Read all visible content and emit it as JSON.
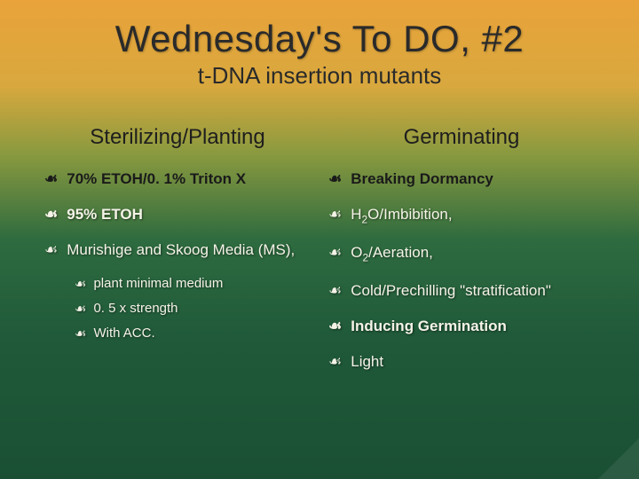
{
  "title": "Wednesday's To DO, #2",
  "subtitle": "t-DNA insertion mutants",
  "colors": {
    "gradient_top": "#e9a33a",
    "gradient_mid1": "#d8a83e",
    "gradient_mid2": "#8a9a3f",
    "gradient_mid3": "#2e6b3f",
    "gradient_bottom": "#1a4f34",
    "heading_text": "#2a2a2a",
    "body_text_light": "#f5f3e8",
    "body_text_dark": "#1a1a1a"
  },
  "typography": {
    "title_fontsize": 42,
    "subtitle_fontsize": 26,
    "col_header_fontsize": 24,
    "item_fontsize": 17,
    "subitem_fontsize": 15,
    "font_family": "Arial"
  },
  "bullet_glyph": "☙",
  "left": {
    "header": "Sterilizing/Planting",
    "items": [
      {
        "text": "70% ETOH/0. 1% Triton X",
        "bold": true
      },
      {
        "text": "95% ETOH",
        "bold": true
      },
      {
        "text": "Murishige and Skoog Media (MS),",
        "bold": false,
        "subs": [
          "plant minimal medium",
          "0. 5 x strength",
          "With ACC."
        ]
      }
    ]
  },
  "right": {
    "header": "Germinating",
    "items": [
      {
        "text": "Breaking Dormancy",
        "bold": true
      },
      {
        "html": "H<sub>2</sub>O/Imbibition,",
        "text": "H2O/Imbibition,",
        "bold": false
      },
      {
        "html": "O<sub>2</sub>/Aeration,",
        "text": "O2/Aeration,",
        "bold": false
      },
      {
        "text": "Cold/Prechilling \"stratification\"",
        "bold": false
      },
      {
        "text": "Inducing Germination",
        "bold": true
      },
      {
        "text": "Light",
        "bold": false
      }
    ]
  }
}
